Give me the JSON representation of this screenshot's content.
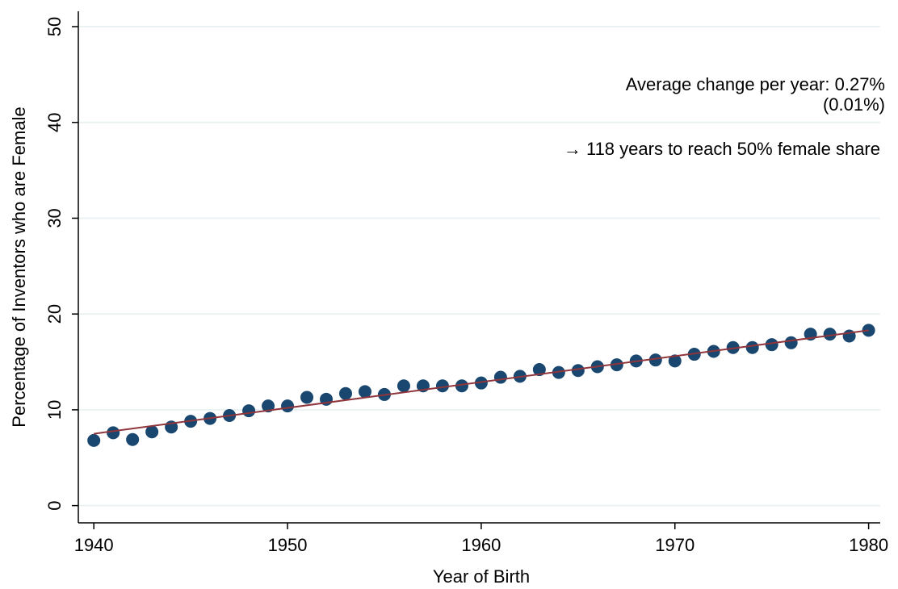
{
  "chart_data": {
    "type": "scatter",
    "x_label": "Year of Birth",
    "y_label": "Percentage of Inventors who are Female",
    "x": [
      1940,
      1941,
      1942,
      1943,
      1944,
      1945,
      1946,
      1947,
      1948,
      1949,
      1950,
      1951,
      1952,
      1953,
      1954,
      1955,
      1956,
      1957,
      1958,
      1959,
      1960,
      1961,
      1962,
      1963,
      1964,
      1965,
      1966,
      1967,
      1968,
      1969,
      1970,
      1971,
      1972,
      1973,
      1974,
      1975,
      1976,
      1977,
      1978,
      1979,
      1980
    ],
    "series": [
      {
        "color": "#1a476f",
        "values": [
          6.8,
          7.6,
          6.9,
          7.7,
          8.2,
          8.8,
          9.1,
          9.4,
          9.9,
          10.4,
          10.4,
          11.3,
          11.1,
          11.7,
          11.9,
          11.6,
          12.5,
          12.5,
          12.5,
          12.5,
          12.8,
          13.4,
          13.5,
          14.2,
          13.9,
          14.1,
          14.5,
          14.7,
          15.1,
          15.2,
          15.1,
          15.8,
          16.1,
          16.5,
          16.5,
          16.8,
          17.0,
          17.9,
          17.9,
          17.7,
          18.3
        ]
      }
    ],
    "fit": {
      "x": [
        1940,
        1980
      ],
      "values": [
        7.5,
        18.3
      ],
      "color": "#90353b"
    },
    "annotations": [
      "Average change per year: 0.27%",
      "(0.01%)",
      "→ 118 years to reach 50% female share"
    ],
    "xlim": [
      1939.2,
      1980.6
    ],
    "xticks": [
      1940,
      1950,
      1960,
      1970,
      1980
    ],
    "ylim": [
      -1.8,
      51.6
    ],
    "yticks": [
      0,
      10,
      20,
      30,
      40,
      50
    ],
    "grid": true
  }
}
